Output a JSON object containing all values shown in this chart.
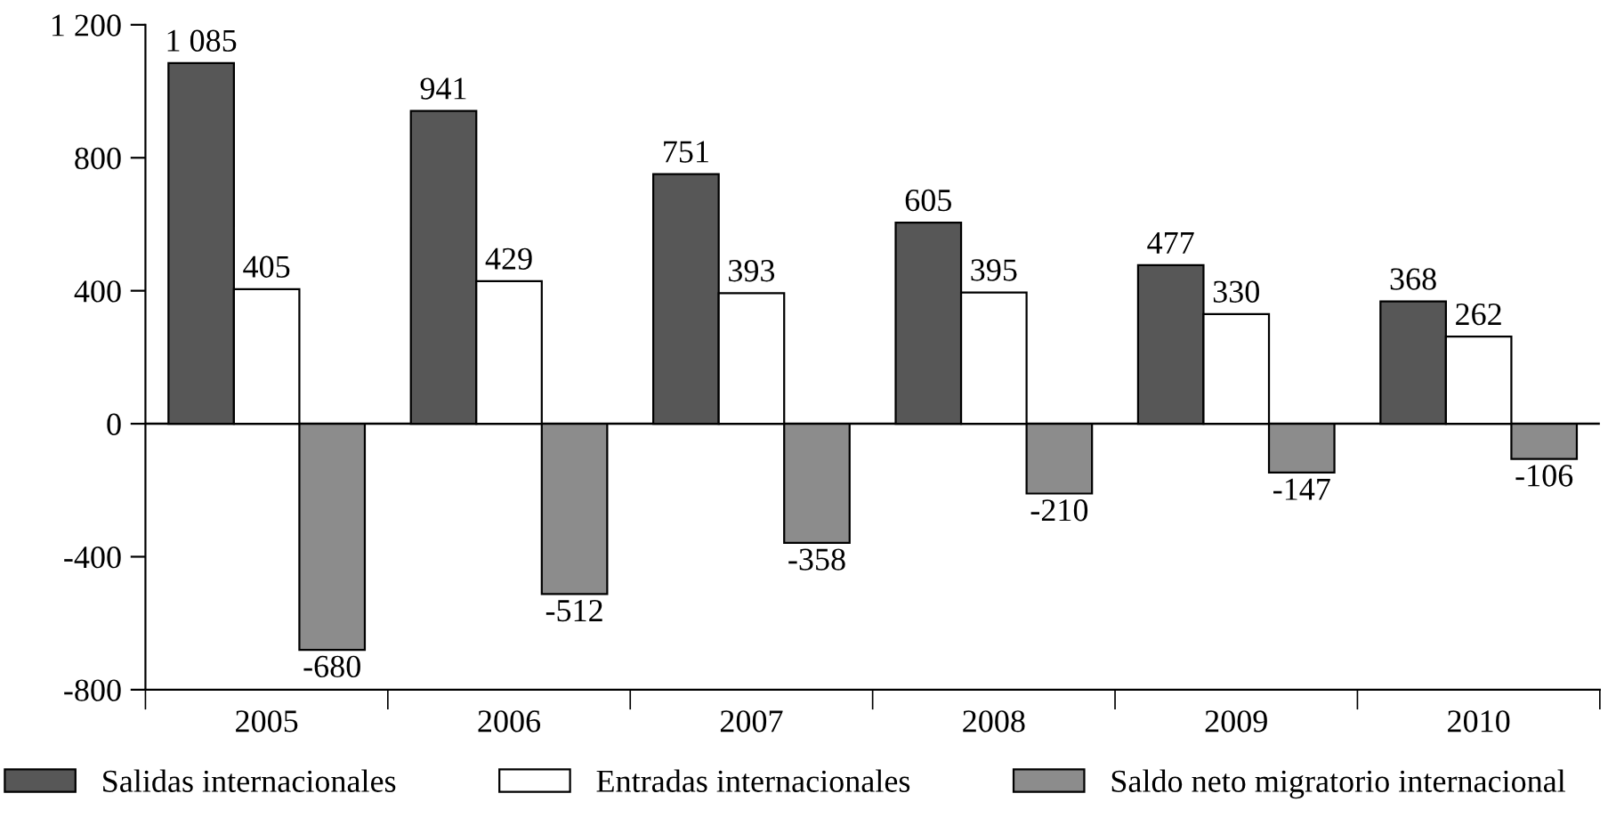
{
  "chart_data": {
    "type": "bar",
    "categories": [
      "2005",
      "2006",
      "2007",
      "2008",
      "2009",
      "2010"
    ],
    "series": [
      {
        "name": "Salidas internacionales",
        "color": "#575757",
        "values": [
          1085,
          941,
          751,
          605,
          477,
          368
        ],
        "value_labels": [
          "1 085",
          "941",
          "751",
          "605",
          "477",
          "368"
        ]
      },
      {
        "name": "Entradas internacionales",
        "color": "#ffffff",
        "values": [
          405,
          429,
          393,
          395,
          330,
          262
        ],
        "value_labels": [
          "405",
          "429",
          "393",
          "395",
          "330",
          "262"
        ]
      },
      {
        "name": "Saldo neto migratorio internacional",
        "color": "#8c8c8c",
        "values": [
          -680,
          -512,
          -358,
          -210,
          -147,
          -106
        ],
        "value_labels": [
          "-680",
          "-512",
          "-358",
          "-210",
          "-147",
          "-106"
        ]
      }
    ],
    "ylim": [
      -800,
      1200
    ],
    "yticks": [
      -800,
      -400,
      0,
      400,
      800,
      {
        "value": 1200,
        "label": "1 200"
      }
    ],
    "ref_lines": [
      {
        "axis": "y",
        "value": 0
      }
    ],
    "grid": false,
    "legend": "bottom"
  }
}
